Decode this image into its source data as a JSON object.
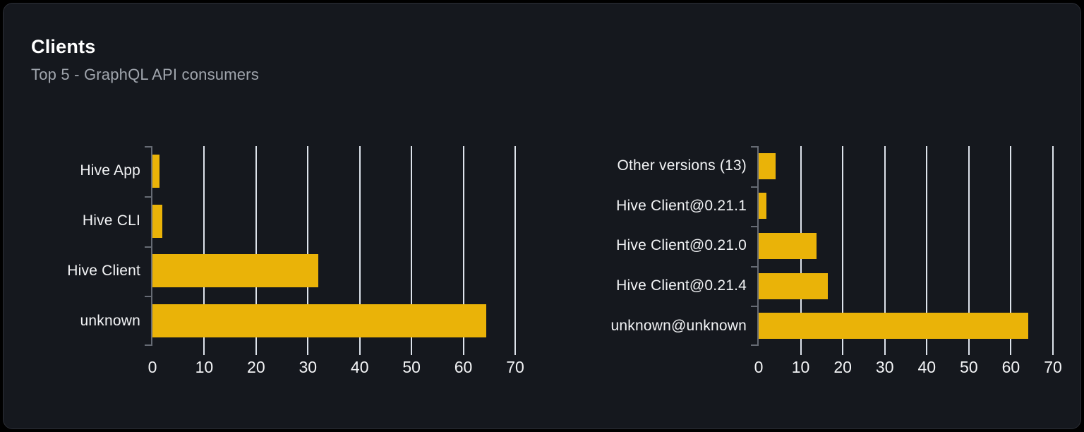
{
  "card": {
    "title": "Clients",
    "subtitle": "Top 5 - GraphQL API consumers"
  },
  "colors": {
    "page_bg": "#000000",
    "card_bg": "#15181E",
    "card_border": "#2B2E36",
    "bar": "#EAB308",
    "grid": "#DDE3EB",
    "axis": "#666B74",
    "category_label": "#F3F4F6",
    "tick_label": "#F3F4F6",
    "title": "#FFFFFF",
    "subtitle": "#A0A5AD"
  },
  "chart_data": [
    {
      "type": "bar",
      "orientation": "horizontal",
      "name": "top-clients",
      "categories": [
        "Hive App",
        "Hive CLI",
        "Hive Client",
        "unknown"
      ],
      "values": [
        1.4,
        1.9,
        32,
        64.4
      ],
      "xlabel": "",
      "ylabel": "",
      "xlim": [
        0,
        70
      ],
      "xticks": [
        0,
        10,
        20,
        30,
        40,
        50,
        60,
        70
      ],
      "grid": true,
      "legend": false
    },
    {
      "type": "bar",
      "orientation": "horizontal",
      "name": "top-client-versions",
      "categories": [
        "Other versions (13)",
        "Hive Client@0.21.1",
        "Hive Client@0.21.0",
        "Hive Client@0.21.4",
        "unknown@unknown"
      ],
      "values": [
        4,
        1.9,
        13.8,
        16.5,
        64.2
      ],
      "xlabel": "",
      "ylabel": "",
      "xlim": [
        0,
        70
      ],
      "xticks": [
        0,
        10,
        20,
        30,
        40,
        50,
        60,
        70
      ],
      "grid": true,
      "legend": false
    }
  ]
}
